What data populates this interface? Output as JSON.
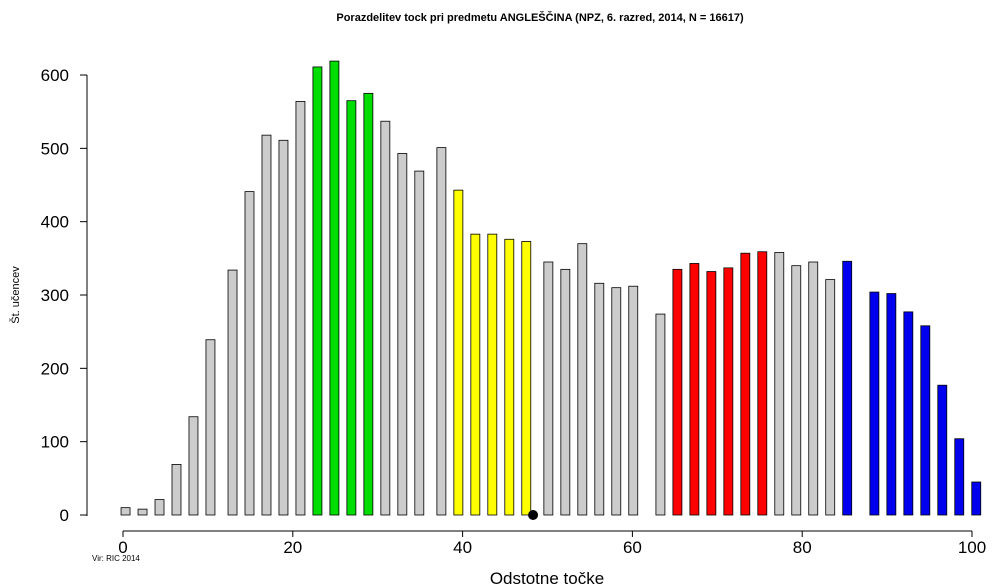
{
  "chart_data": {
    "type": "bar",
    "title": "Porazdelitev tock pri predmetu ANGLEŠČINA (NPZ, 6. razred, 2014, N = 16617)",
    "xlabel": "Odstotne točke",
    "ylabel": "Št. učencev",
    "source": "Vir: RIC 2014",
    "xlim": [
      0,
      100
    ],
    "ylim": [
      0,
      600
    ],
    "x_ticks": [
      0,
      20,
      40,
      60,
      80,
      100
    ],
    "y_ticks": [
      0,
      100,
      200,
      300,
      400,
      500,
      600
    ],
    "grid": false,
    "legend": "none",
    "colors": {
      "gray": "#cccccc",
      "green": "#00dd00",
      "yellow": "#ffff00",
      "red": "#ff0000",
      "blue": "#0000ee"
    },
    "x": [
      0.3,
      2.3,
      4.3,
      6.3,
      8.3,
      10.3,
      12.9,
      14.9,
      16.9,
      18.9,
      20.9,
      22.9,
      24.9,
      26.9,
      28.9,
      30.9,
      32.9,
      34.9,
      37.5,
      39.5,
      41.5,
      43.5,
      45.5,
      47.5,
      50.1,
      52.1,
      54.1,
      56.1,
      58.1,
      60.1,
      63.3,
      65.3,
      67.3,
      69.3,
      71.3,
      73.3,
      75.3,
      77.3,
      79.3,
      81.3,
      83.3,
      85.3,
      88.5,
      90.5,
      92.5,
      94.5,
      96.5,
      98.5,
      100.5
    ],
    "values": [
      10,
      8,
      21,
      69,
      134,
      239,
      334,
      441,
      518,
      511,
      564,
      611,
      619,
      565,
      575,
      537,
      493,
      469,
      501,
      443,
      383,
      383,
      376,
      373,
      345,
      335,
      370,
      316,
      310,
      312,
      274,
      335,
      343,
      332,
      337,
      357,
      359,
      358,
      340,
      345,
      321,
      346,
      304,
      302,
      277,
      258,
      177,
      104,
      45
    ],
    "bar_colors": [
      "gray",
      "gray",
      "gray",
      "gray",
      "gray",
      "gray",
      "gray",
      "gray",
      "gray",
      "gray",
      "gray",
      "green",
      "green",
      "green",
      "green",
      "gray",
      "gray",
      "gray",
      "gray",
      "yellow",
      "yellow",
      "yellow",
      "yellow",
      "yellow",
      "gray",
      "gray",
      "gray",
      "gray",
      "gray",
      "gray",
      "gray",
      "red",
      "red",
      "red",
      "red",
      "red",
      "red",
      "gray",
      "gray",
      "gray",
      "gray",
      "blue",
      "blue",
      "blue",
      "blue",
      "blue",
      "blue",
      "blue",
      "blue"
    ],
    "marker": {
      "x": 48.3,
      "y": 0,
      "shape": "dot"
    }
  }
}
